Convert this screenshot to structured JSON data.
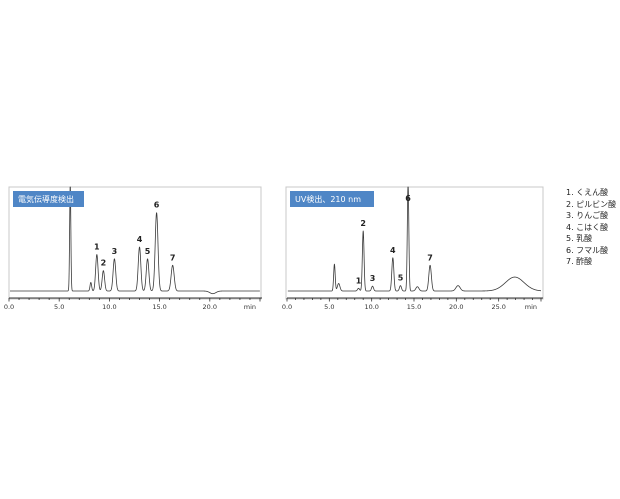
{
  "chart_data": [
    {
      "type": "line",
      "title": "電気伝導度検出",
      "xlabel": "min",
      "ylabel": "",
      "xlim": [
        0,
        25
      ],
      "ylim": [
        0,
        1
      ],
      "x_ticks": [
        0,
        5,
        10,
        15,
        20,
        25
      ],
      "x_tick_labels": [
        "0.0",
        "5.0",
        "10.0",
        "15.0",
        "20.0",
        ""
      ],
      "grid": false,
      "baseline": 0.03,
      "peaks": [
        {
          "label": "",
          "rt": 6.1,
          "height": 1.0,
          "width": 0.06
        },
        {
          "label": "",
          "rt": 8.15,
          "height": 0.08,
          "width": 0.08
        },
        {
          "label": "1",
          "rt": 8.75,
          "height": 0.34,
          "width": 0.12
        },
        {
          "label": "2",
          "rt": 9.4,
          "height": 0.19,
          "width": 0.12
        },
        {
          "label": "3",
          "rt": 10.5,
          "height": 0.3,
          "width": 0.13
        },
        {
          "label": "4",
          "rt": 13.0,
          "height": 0.41,
          "width": 0.13
        },
        {
          "label": "5",
          "rt": 13.8,
          "height": 0.3,
          "width": 0.13
        },
        {
          "label": "6",
          "rt": 14.7,
          "height": 0.73,
          "width": 0.14
        },
        {
          "label": "7",
          "rt": 16.3,
          "height": 0.24,
          "width": 0.15
        },
        {
          "label": "",
          "rt": 20.3,
          "height": -0.025,
          "width": 0.3
        }
      ]
    },
    {
      "type": "line",
      "title": "UV検出、210 nm",
      "xlabel": "min",
      "ylabel": "",
      "xlim": [
        0,
        30
      ],
      "ylim": [
        0,
        1
      ],
      "x_ticks": [
        0,
        5,
        10,
        15,
        20,
        25,
        30
      ],
      "x_tick_labels": [
        "0.0",
        "5.0",
        "10.0",
        "15.0",
        "20.0",
        "25.0",
        ""
      ],
      "grid": false,
      "baseline": 0.03,
      "peaks": [
        {
          "label": "",
          "rt": 5.6,
          "height": 0.25,
          "width": 0.09
        },
        {
          "label": "",
          "rt": 6.1,
          "height": 0.07,
          "width": 0.15
        },
        {
          "label": "1",
          "rt": 8.45,
          "height": 0.025,
          "width": 0.12
        },
        {
          "label": "2",
          "rt": 9.0,
          "height": 0.56,
          "width": 0.1
        },
        {
          "label": "3",
          "rt": 10.1,
          "height": 0.045,
          "width": 0.12
        },
        {
          "label": "4",
          "rt": 12.5,
          "height": 0.31,
          "width": 0.12
        },
        {
          "label": "5",
          "rt": 13.4,
          "height": 0.05,
          "width": 0.12
        },
        {
          "label": "6",
          "rt": 14.3,
          "height": 1.0,
          "width": 0.09
        },
        {
          "label": "",
          "rt": 15.4,
          "height": 0.04,
          "width": 0.18
        },
        {
          "label": "7",
          "rt": 16.9,
          "height": 0.24,
          "width": 0.15
        },
        {
          "label": "",
          "rt": 20.2,
          "height": 0.05,
          "width": 0.25
        },
        {
          "label": "",
          "rt": 26.9,
          "height": 0.13,
          "width": 1.1
        }
      ]
    }
  ],
  "legend": {
    "items": [
      "1. くえん酸",
      "2. ピルビン酸",
      "3. りんご酸",
      "4. こはく酸",
      "5. 乳酸",
      "6. フマル酸",
      "7. 酢酸"
    ]
  }
}
